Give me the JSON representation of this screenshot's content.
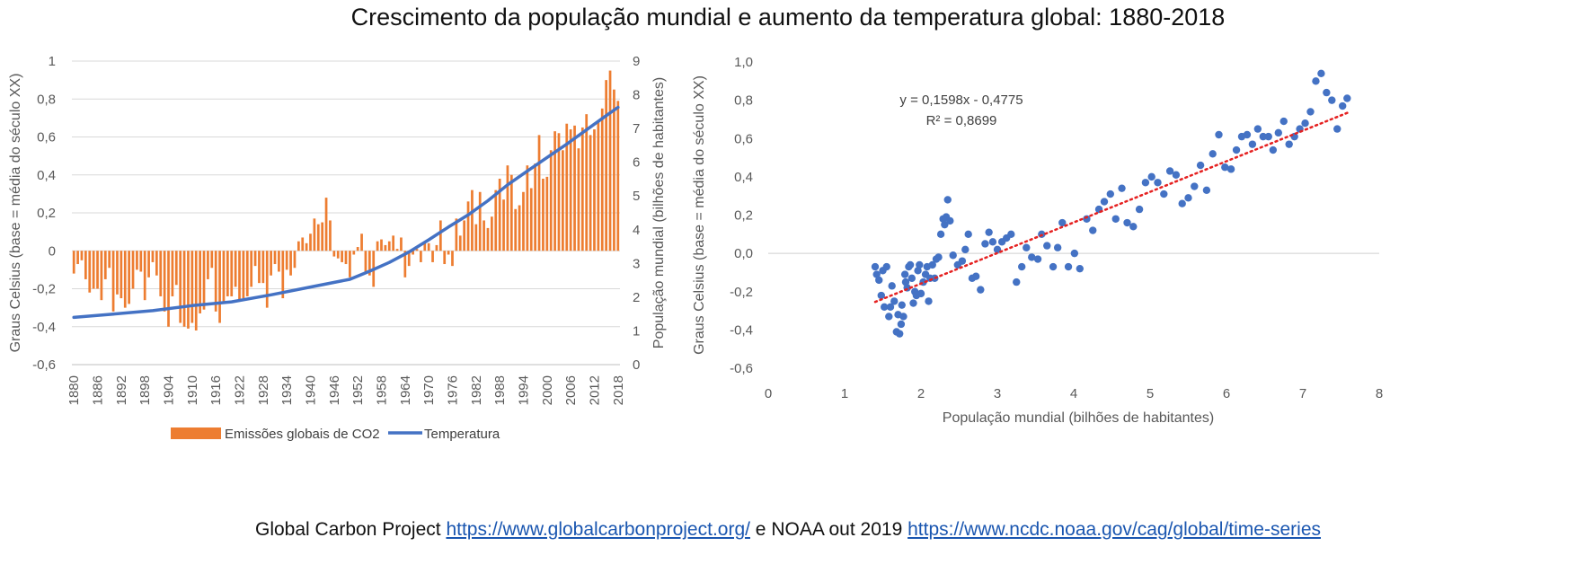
{
  "title": "Crescimento da população mundial e aumento da temperatura global: 1880-2018",
  "source": {
    "prefix": "Global Carbon Project ",
    "link1": "https://www.globalcarbonproject.org/",
    "middle": " e NOAA out 2019 ",
    "link2": "https://www.ncdc.noaa.gov/cag/global/time-series"
  },
  "colors": {
    "bar": "#ED7D31",
    "line": "#4472C4",
    "point": "#4472C4",
    "trend": "#E52121",
    "grid": "#D9D9D9"
  },
  "chart_data": [
    {
      "type": "bar+line",
      "title": "",
      "ylabel_left": "Graus Celsius (base = média do século XX)",
      "ylabel_right": "População mundial (bilhões de habitantes)",
      "ylim_left": [
        -0.6,
        1
      ],
      "ylim_right": [
        0,
        9
      ],
      "yticks_left": [
        -0.6,
        -0.4,
        -0.2,
        0,
        0.2,
        0.4,
        0.6,
        0.8,
        1
      ],
      "yticks_left_labels": [
        "-0,6",
        "-0,4",
        "-0,2",
        "0",
        "0,2",
        "0,4",
        "0,6",
        "0,8",
        "1"
      ],
      "yticks_right": [
        0,
        1,
        2,
        3,
        4,
        5,
        6,
        7,
        8,
        9
      ],
      "yticks_right_labels": [
        "0",
        "1",
        "2",
        "3",
        "4",
        "5",
        "6",
        "7",
        "8",
        "9"
      ],
      "x_start": 1880,
      "x_end": 2018,
      "xtick_labels": [
        "1880",
        "1886",
        "1892",
        "1898",
        "1904",
        "1910",
        "1916",
        "1922",
        "1928",
        "1934",
        "1940",
        "1946",
        "1952",
        "1958",
        "1964",
        "1970",
        "1976",
        "1982",
        "1988",
        "1994",
        "2000",
        "2006",
        "2012",
        "2018"
      ],
      "legend": [
        "Emissões globais de CO2",
        "Temperatura"
      ],
      "bar_series": {
        "name": "Emissões globais de CO2",
        "axis": "left",
        "values": [
          -0.12,
          -0.07,
          -0.05,
          -0.15,
          -0.22,
          -0.2,
          -0.2,
          -0.26,
          -0.15,
          -0.09,
          -0.32,
          -0.23,
          -0.25,
          -0.3,
          -0.28,
          -0.2,
          -0.1,
          -0.11,
          -0.26,
          -0.14,
          -0.06,
          -0.13,
          -0.24,
          -0.32,
          -0.4,
          -0.24,
          -0.18,
          -0.38,
          -0.4,
          -0.41,
          -0.38,
          -0.42,
          -0.33,
          -0.31,
          -0.15,
          -0.09,
          -0.32,
          -0.38,
          -0.27,
          -0.24,
          -0.24,
          -0.19,
          -0.26,
          -0.25,
          -0.24,
          -0.19,
          -0.08,
          -0.17,
          -0.17,
          -0.3,
          -0.13,
          -0.07,
          -0.11,
          -0.25,
          -0.1,
          -0.13,
          -0.09,
          0.05,
          0.07,
          0.04,
          0.09,
          0.17,
          0.14,
          0.15,
          0.28,
          0.16,
          -0.03,
          -0.04,
          -0.06,
          -0.07,
          -0.14,
          -0.02,
          0.02,
          0.09,
          -0.12,
          -0.13,
          -0.19,
          0.05,
          0.06,
          0.03,
          0.05,
          0.08,
          0.01,
          0.07,
          -0.14,
          -0.08,
          -0.02,
          0.01,
          -0.06,
          0.05,
          0.04,
          -0.06,
          0.03,
          0.16,
          -0.07,
          -0.02,
          -0.08,
          0.17,
          0.08,
          0.16,
          0.26,
          0.32,
          0.14,
          0.31,
          0.16,
          0.12,
          0.18,
          0.32,
          0.38,
          0.27,
          0.45,
          0.4,
          0.22,
          0.24,
          0.31,
          0.45,
          0.33,
          0.46,
          0.61,
          0.38,
          0.39,
          0.53,
          0.63,
          0.62,
          0.53,
          0.67,
          0.64,
          0.66,
          0.54,
          0.65,
          0.72,
          0.61,
          0.64,
          0.68,
          0.75,
          0.9,
          0.95,
          0.85,
          0.79
        ]
      },
      "line_series": {
        "name": "Temperatura",
        "axis": "right",
        "points": [
          [
            1880,
            1.4
          ],
          [
            1890,
            1.5
          ],
          [
            1900,
            1.6
          ],
          [
            1910,
            1.75
          ],
          [
            1920,
            1.86
          ],
          [
            1930,
            2.07
          ],
          [
            1940,
            2.3
          ],
          [
            1950,
            2.53
          ],
          [
            1955,
            2.77
          ],
          [
            1960,
            3.03
          ],
          [
            1965,
            3.34
          ],
          [
            1970,
            3.7
          ],
          [
            1975,
            4.08
          ],
          [
            1980,
            4.44
          ],
          [
            1985,
            4.86
          ],
          [
            1990,
            5.33
          ],
          [
            1995,
            5.74
          ],
          [
            2000,
            6.14
          ],
          [
            2005,
            6.54
          ],
          [
            2010,
            6.96
          ],
          [
            2015,
            7.38
          ],
          [
            2018,
            7.63
          ]
        ]
      }
    },
    {
      "type": "scatter",
      "title": "",
      "xlabel": "População mundial (bilhões de habitantes)",
      "ylabel": "Graus Celsius (base = média do século XX)",
      "xlim": [
        0,
        8
      ],
      "ylim": [
        -0.6,
        1.0
      ],
      "xticks": [
        0,
        1,
        2,
        3,
        4,
        5,
        6,
        7,
        8
      ],
      "xtick_labels": [
        "0",
        "1",
        "2",
        "3",
        "4",
        "5",
        "6",
        "7",
        "8"
      ],
      "yticks": [
        -0.6,
        -0.4,
        -0.2,
        0.0,
        0.2,
        0.4,
        0.6,
        0.8,
        1.0
      ],
      "ytick_labels": [
        "-0,6",
        "-0,4",
        "-0,2",
        "0,0",
        "0,2",
        "0,4",
        "0,6",
        "0,8",
        "1,0"
      ],
      "trendline": {
        "slope": 0.1598,
        "intercept": -0.4775,
        "x_range": [
          1.4,
          7.6
        ],
        "style": "dotted"
      },
      "equation": "y = 0,1598x - 0,4775",
      "r_squared": "R² = 0,8699",
      "points": [
        [
          1.4,
          -0.07
        ],
        [
          1.42,
          -0.11
        ],
        [
          1.45,
          -0.14
        ],
        [
          1.48,
          -0.22
        ],
        [
          1.5,
          -0.09
        ],
        [
          1.52,
          -0.28
        ],
        [
          1.55,
          -0.07
        ],
        [
          1.58,
          -0.33
        ],
        [
          1.6,
          -0.28
        ],
        [
          1.62,
          -0.17
        ],
        [
          1.65,
          -0.25
        ],
        [
          1.68,
          -0.41
        ],
        [
          1.7,
          -0.32
        ],
        [
          1.72,
          -0.42
        ],
        [
          1.74,
          -0.37
        ],
        [
          1.75,
          -0.27
        ],
        [
          1.77,
          -0.33
        ],
        [
          1.79,
          -0.11
        ],
        [
          1.8,
          -0.15
        ],
        [
          1.82,
          -0.18
        ],
        [
          1.84,
          -0.07
        ],
        [
          1.86,
          -0.06
        ],
        [
          1.88,
          -0.13
        ],
        [
          1.9,
          -0.26
        ],
        [
          1.92,
          -0.2
        ],
        [
          1.94,
          -0.22
        ],
        [
          1.96,
          -0.09
        ],
        [
          1.98,
          -0.06
        ],
        [
          2.0,
          -0.21
        ],
        [
          2.03,
          -0.15
        ],
        [
          2.06,
          -0.11
        ],
        [
          2.08,
          -0.07
        ],
        [
          2.1,
          -0.25
        ],
        [
          2.12,
          -0.13
        ],
        [
          2.15,
          -0.06
        ],
        [
          2.18,
          -0.13
        ],
        [
          2.2,
          -0.03
        ],
        [
          2.23,
          -0.02
        ],
        [
          2.26,
          0.1
        ],
        [
          2.29,
          0.18
        ],
        [
          2.31,
          0.15
        ],
        [
          2.33,
          0.19
        ],
        [
          2.35,
          0.28
        ],
        [
          2.38,
          0.17
        ],
        [
          2.42,
          -0.01
        ],
        [
          2.48,
          -0.06
        ],
        [
          2.54,
          -0.04
        ],
        [
          2.58,
          0.02
        ],
        [
          2.62,
          0.1
        ],
        [
          2.67,
          -0.13
        ],
        [
          2.72,
          -0.12
        ],
        [
          2.78,
          -0.19
        ],
        [
          2.84,
          0.05
        ],
        [
          2.89,
          0.11
        ],
        [
          2.94,
          0.06
        ],
        [
          3.0,
          0.02
        ],
        [
          3.06,
          0.06
        ],
        [
          3.12,
          0.08
        ],
        [
          3.18,
          0.1
        ],
        [
          3.25,
          -0.15
        ],
        [
          3.32,
          -0.07
        ],
        [
          3.38,
          0.03
        ],
        [
          3.45,
          -0.02
        ],
        [
          3.53,
          -0.03
        ],
        [
          3.58,
          0.1
        ],
        [
          3.65,
          0.04
        ],
        [
          3.73,
          -0.07
        ],
        [
          3.79,
          0.03
        ],
        [
          3.85,
          0.16
        ],
        [
          3.93,
          -0.07
        ],
        [
          4.01,
          0.0
        ],
        [
          4.08,
          -0.08
        ],
        [
          4.17,
          0.18
        ],
        [
          4.25,
          0.12
        ],
        [
          4.33,
          0.23
        ],
        [
          4.4,
          0.27
        ],
        [
          4.48,
          0.31
        ],
        [
          4.55,
          0.18
        ],
        [
          4.63,
          0.34
        ],
        [
          4.7,
          0.16
        ],
        [
          4.78,
          0.14
        ],
        [
          4.86,
          0.23
        ],
        [
          4.94,
          0.37
        ],
        [
          5.02,
          0.4
        ],
        [
          5.1,
          0.37
        ],
        [
          5.18,
          0.31
        ],
        [
          5.26,
          0.43
        ],
        [
          5.34,
          0.41
        ],
        [
          5.42,
          0.26
        ],
        [
          5.5,
          0.29
        ],
        [
          5.58,
          0.35
        ],
        [
          5.66,
          0.46
        ],
        [
          5.74,
          0.33
        ],
        [
          5.82,
          0.52
        ],
        [
          5.9,
          0.62
        ],
        [
          5.98,
          0.45
        ],
        [
          6.06,
          0.44
        ],
        [
          6.13,
          0.54
        ],
        [
          6.2,
          0.61
        ],
        [
          6.27,
          0.62
        ],
        [
          6.34,
          0.57
        ],
        [
          6.41,
          0.65
        ],
        [
          6.48,
          0.61
        ],
        [
          6.55,
          0.61
        ],
        [
          6.61,
          0.54
        ],
        [
          6.68,
          0.63
        ],
        [
          6.75,
          0.69
        ],
        [
          6.82,
          0.57
        ],
        [
          6.89,
          0.61
        ],
        [
          6.96,
          0.65
        ],
        [
          7.03,
          0.68
        ],
        [
          7.1,
          0.74
        ],
        [
          7.17,
          0.9
        ],
        [
          7.24,
          0.94
        ],
        [
          7.31,
          0.84
        ],
        [
          7.38,
          0.8
        ],
        [
          7.45,
          0.65
        ],
        [
          7.52,
          0.77
        ],
        [
          7.58,
          0.81
        ]
      ]
    }
  ]
}
